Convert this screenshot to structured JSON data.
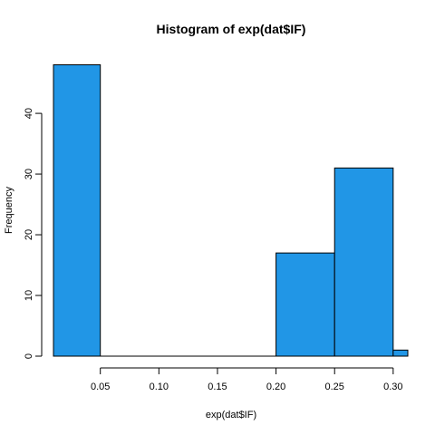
{
  "chart_data": {
    "type": "bar",
    "title": "Histogram of exp(dat$IF)",
    "xlabel": "exp(dat$IF)",
    "ylabel": "Frequency",
    "bars": [
      {
        "x0": 0.01,
        "x1": 0.05,
        "count": 48
      },
      {
        "x0": 0.2,
        "x1": 0.25,
        "count": 17
      },
      {
        "x0": 0.25,
        "x1": 0.3,
        "count": 31
      },
      {
        "x0": 0.3,
        "x1": 0.3125,
        "count": 1
      }
    ],
    "xlim": [
      0.01,
      0.3125
    ],
    "ylim": [
      0,
      48
    ],
    "xticks": [
      0.05,
      0.1,
      0.15,
      0.2,
      0.25,
      0.3
    ],
    "xtick_labels": [
      "0.05",
      "0.10",
      "0.15",
      "0.20",
      "0.25",
      "0.30"
    ],
    "yticks": [
      0,
      10,
      20,
      30,
      40
    ],
    "ytick_labels": [
      "0",
      "10",
      "20",
      "30",
      "40"
    ],
    "bar_color": "#2196E6",
    "grid": false
  }
}
